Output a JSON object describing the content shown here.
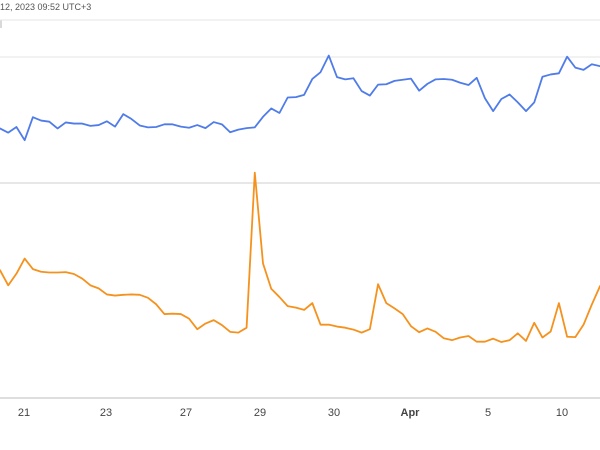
{
  "header": {
    "timestamp": "12, 2023 09:52 UTC+3"
  },
  "chart_data": {
    "type": "line",
    "title": "",
    "xlabel": "",
    "ylabel": "",
    "grid": true,
    "x_tick_labels": [
      "21",
      "23",
      "27",
      "29",
      "30",
      "Apr",
      "5",
      "10"
    ],
    "series": [
      {
        "color": "#4f7ce8",
        "values": [
          71.3,
          70.2,
          71.7,
          68.2,
          74.3,
          73.4,
          73.1,
          71.3,
          72.9,
          72.6,
          72.6,
          72.0,
          72.2,
          73.2,
          71.8,
          75.1,
          73.8,
          72.1,
          71.6,
          71.7,
          72.4,
          72.4,
          71.8,
          71.5,
          72.2,
          71.4,
          73.0,
          72.4,
          70.3,
          71.0,
          71.4,
          71.6,
          74.4,
          76.6,
          75.4,
          79.5,
          79.6,
          80.2,
          84.4,
          86.2,
          90.6,
          84.9,
          84.3,
          84.6,
          81.2,
          80.0,
          82.9,
          83.0,
          83.9,
          84.2,
          84.5,
          81.3,
          83.1,
          84.3,
          84.4,
          84.2,
          83.4,
          82.8,
          84.7,
          79.3,
          75.9,
          79.1,
          80.3,
          78.2,
          75.9,
          78.2,
          85.0,
          85.6,
          85.9,
          90.3,
          87.4,
          86.8,
          88.3,
          87.8
        ]
      },
      {
        "color": "#f5921e",
        "values": [
          33.8,
          29.8,
          32.9,
          36.9,
          34.1,
          33.4,
          33.2,
          33.2,
          33.3,
          32.8,
          31.6,
          29.8,
          29.0,
          27.4,
          27.1,
          27.3,
          27.4,
          27.3,
          26.5,
          24.8,
          22.2,
          22.3,
          22.2,
          21.0,
          18.2,
          19.7,
          20.6,
          19.3,
          17.5,
          17.3,
          18.6,
          59.6,
          35.6,
          28.9,
          26.7,
          24.3,
          23.9,
          23.3,
          25.1,
          19.4,
          19.4,
          18.9,
          18.6,
          18.1,
          17.3,
          18.2,
          30.1,
          25.1,
          23.7,
          22.2,
          19.0,
          17.4,
          18.4,
          17.5,
          15.8,
          15.3,
          16.0,
          16.4,
          14.9,
          14.9,
          15.7,
          14.8,
          15.3,
          17.1,
          15.1,
          19.9,
          16.0,
          17.6,
          25.1,
          16.2,
          16.1,
          19.4,
          24.7,
          29.6
        ]
      }
    ]
  }
}
